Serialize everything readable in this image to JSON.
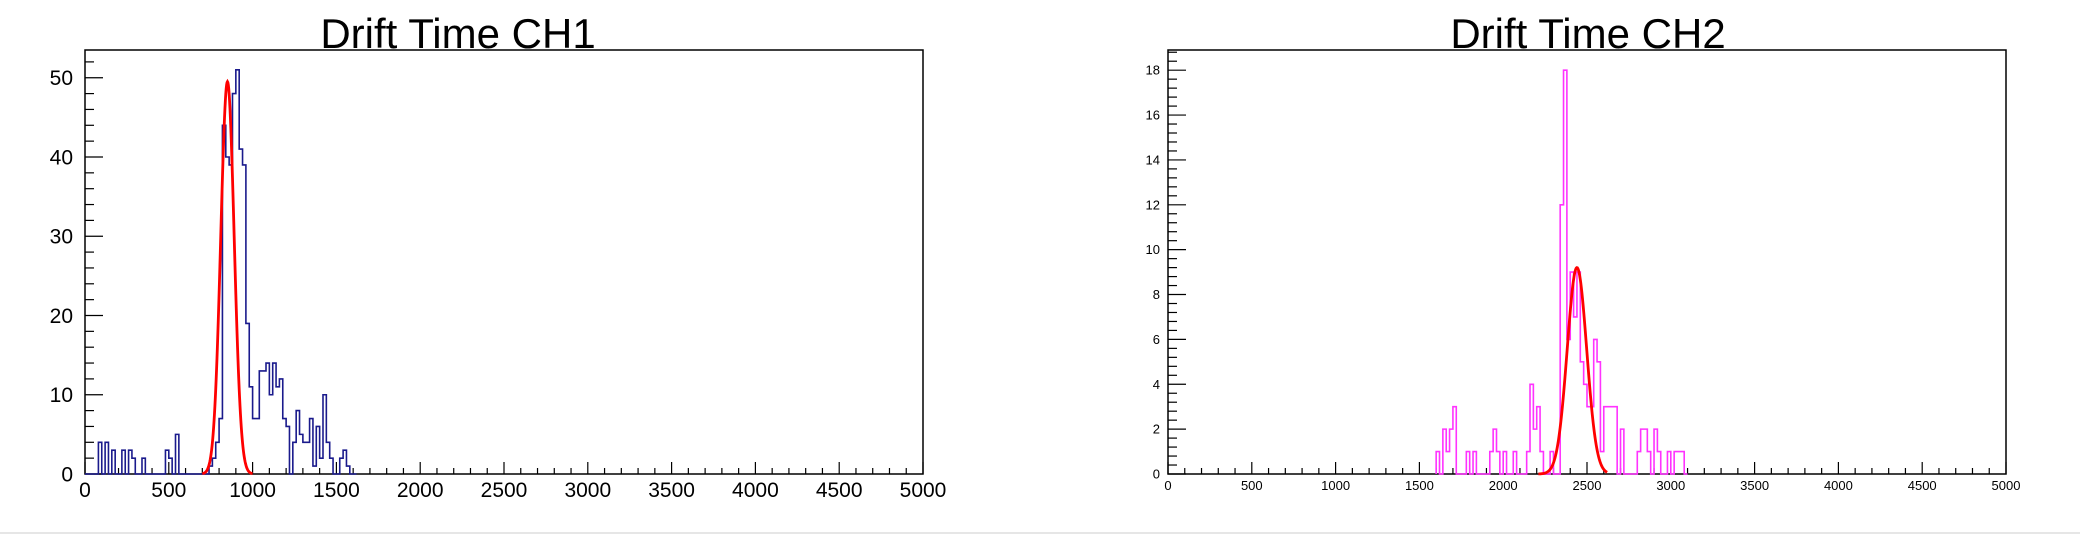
{
  "chart_data": [
    {
      "type": "bar",
      "title": "Drift Time CH1",
      "xlabel": "",
      "ylabel": "",
      "xlim": [
        0,
        5000
      ],
      "ylim": [
        0,
        53.5
      ],
      "x_ticks": [
        0,
        500,
        1000,
        1500,
        2000,
        2500,
        3000,
        3500,
        4000,
        4500,
        5000
      ],
      "y_ticks": [
        0,
        10,
        20,
        30,
        40,
        50
      ],
      "grid": false,
      "legend": "none",
      "colors": {
        "histogram": "#1a1a8c",
        "fit": "#ff0000"
      },
      "series": [
        {
          "kind": "histogram",
          "bin_width": 20,
          "x_start": 0,
          "values": [
            0,
            0,
            0,
            0,
            4,
            0,
            4,
            0,
            3,
            0,
            0,
            3,
            0,
            3,
            2,
            0,
            0,
            2,
            0,
            0,
            0,
            0,
            0,
            0,
            3,
            2,
            0,
            5,
            0,
            0,
            0,
            0,
            0,
            0,
            0,
            0,
            0,
            1,
            2,
            4,
            7,
            44,
            40,
            39,
            48,
            51,
            41,
            39,
            19,
            11,
            7,
            7,
            13,
            13,
            14,
            10,
            14,
            11,
            12,
            7,
            6,
            0,
            4,
            8,
            5,
            4,
            4,
            7,
            1,
            6,
            2,
            10,
            4,
            2,
            0,
            0,
            2,
            3,
            1,
            0,
            0
          ]
        },
        {
          "kind": "gaussian-fit",
          "amplitude": 49.5,
          "mean": 850,
          "sigma": 40,
          "range": [
            700,
            1000
          ]
        }
      ]
    },
    {
      "type": "bar",
      "title": "Drift Time CH2",
      "xlabel": "",
      "ylabel": "",
      "xlim": [
        0,
        5000
      ],
      "ylim": [
        0,
        18.9
      ],
      "x_ticks": [
        0,
        500,
        1000,
        1500,
        2000,
        2500,
        3000,
        3500,
        4000,
        4500,
        5000
      ],
      "y_ticks": [
        0,
        2,
        4,
        6,
        8,
        10,
        12,
        14,
        16,
        18
      ],
      "grid": false,
      "legend": "none",
      "colors": {
        "histogram": "#ff33ff",
        "fit": "#ff0000"
      },
      "series": [
        {
          "kind": "histogram",
          "bin_width": 20,
          "x_start": 1600,
          "values": [
            1,
            0,
            2,
            1,
            2,
            3,
            0,
            0,
            0,
            1,
            0,
            1,
            0,
            0,
            0,
            0,
            1,
            2,
            1,
            0,
            1,
            0,
            0,
            1,
            0,
            0,
            0,
            1,
            4,
            2,
            3,
            1,
            0,
            0,
            1,
            0,
            0,
            12,
            18,
            6,
            9,
            7,
            9,
            5,
            4,
            3,
            3,
            6,
            5,
            1,
            3,
            3,
            3,
            3,
            0,
            2,
            0,
            0,
            0,
            0,
            1,
            2,
            2,
            1,
            0,
            2,
            1,
            0,
            0,
            1,
            0,
            1,
            1,
            1,
            0
          ]
        },
        {
          "kind": "gaussian-fit",
          "amplitude": 9.2,
          "mean": 2440,
          "sigma": 58,
          "range": [
            2210,
            2620
          ]
        }
      ]
    }
  ]
}
